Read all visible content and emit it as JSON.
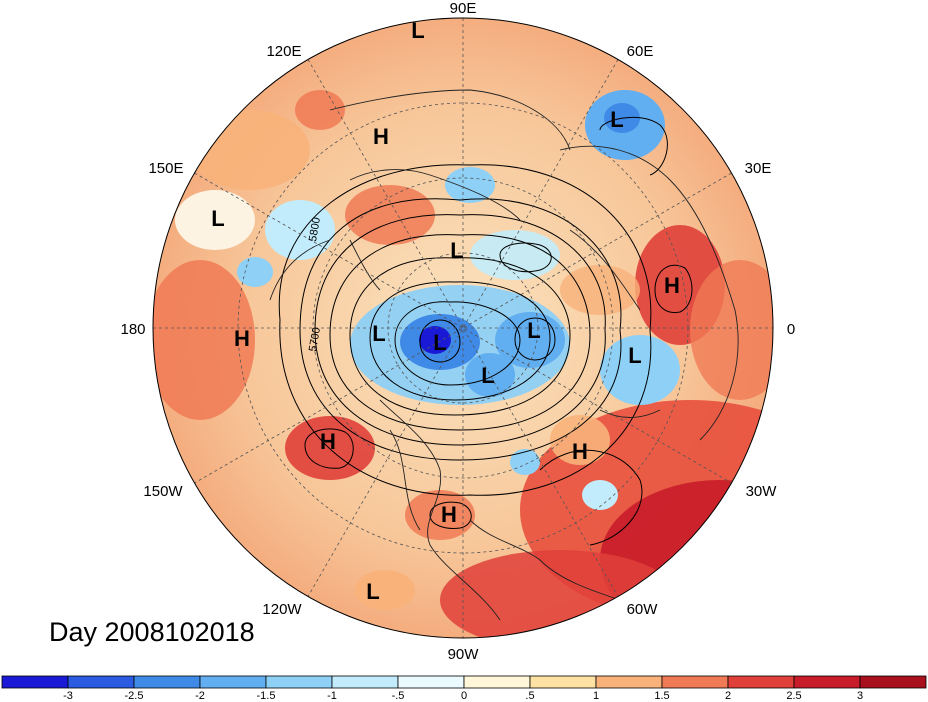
{
  "title": "Day 2008102018",
  "map": {
    "projection": "north-polar-stereographic",
    "longitude_labels": [
      {
        "text": "90E",
        "lon": 90
      },
      {
        "text": "60E",
        "lon": 60
      },
      {
        "text": "30E",
        "lon": 30
      },
      {
        "text": "0",
        "lon": 0
      },
      {
        "text": "30W",
        "lon": -30
      },
      {
        "text": "60W",
        "lon": -60
      },
      {
        "text": "90W",
        "lon": -90
      },
      {
        "text": "120W",
        "lon": -120
      },
      {
        "text": "150W",
        "lon": -150
      },
      {
        "text": "180",
        "lon": 180
      },
      {
        "text": "150E",
        "lon": 150
      },
      {
        "text": "120E",
        "lon": 120
      }
    ],
    "pressure_centers": [
      {
        "label": "L",
        "name": "low-center"
      },
      {
        "label": "L",
        "name": "low-center"
      },
      {
        "label": "H",
        "name": "high-center"
      },
      {
        "label": "L",
        "name": "low-center"
      },
      {
        "label": "L",
        "name": "low-center"
      },
      {
        "label": "H",
        "name": "high-center"
      },
      {
        "label": "H",
        "name": "high-center"
      },
      {
        "label": "L",
        "name": "low-center"
      },
      {
        "label": "L",
        "name": "low-center"
      },
      {
        "label": "L",
        "name": "low-center"
      },
      {
        "label": "L",
        "name": "low-center"
      },
      {
        "label": "L",
        "name": "low-center"
      },
      {
        "label": "H",
        "name": "high-center"
      },
      {
        "label": "H",
        "name": "high-center"
      },
      {
        "label": "H",
        "name": "high-center"
      },
      {
        "label": "L",
        "name": "low-center"
      }
    ],
    "contour_labels": [
      "5800",
      "5700"
    ]
  },
  "colorbar": {
    "ticks": [
      "-3",
      "-2.5",
      "-2",
      "-1.5",
      "-1",
      "-.5",
      "0",
      ".5",
      "1",
      "1.5",
      "2",
      "2.5",
      "3"
    ],
    "colors": [
      "#1a1ad6",
      "#2a5be0",
      "#3f8ae6",
      "#61aef0",
      "#8ed0f6",
      "#c2ecfb",
      "#eafaff",
      "#fff7d8",
      "#fde2a4",
      "#f8b27a",
      "#f07a55",
      "#e0403a",
      "#c81c2a",
      "#a8101e"
    ]
  }
}
